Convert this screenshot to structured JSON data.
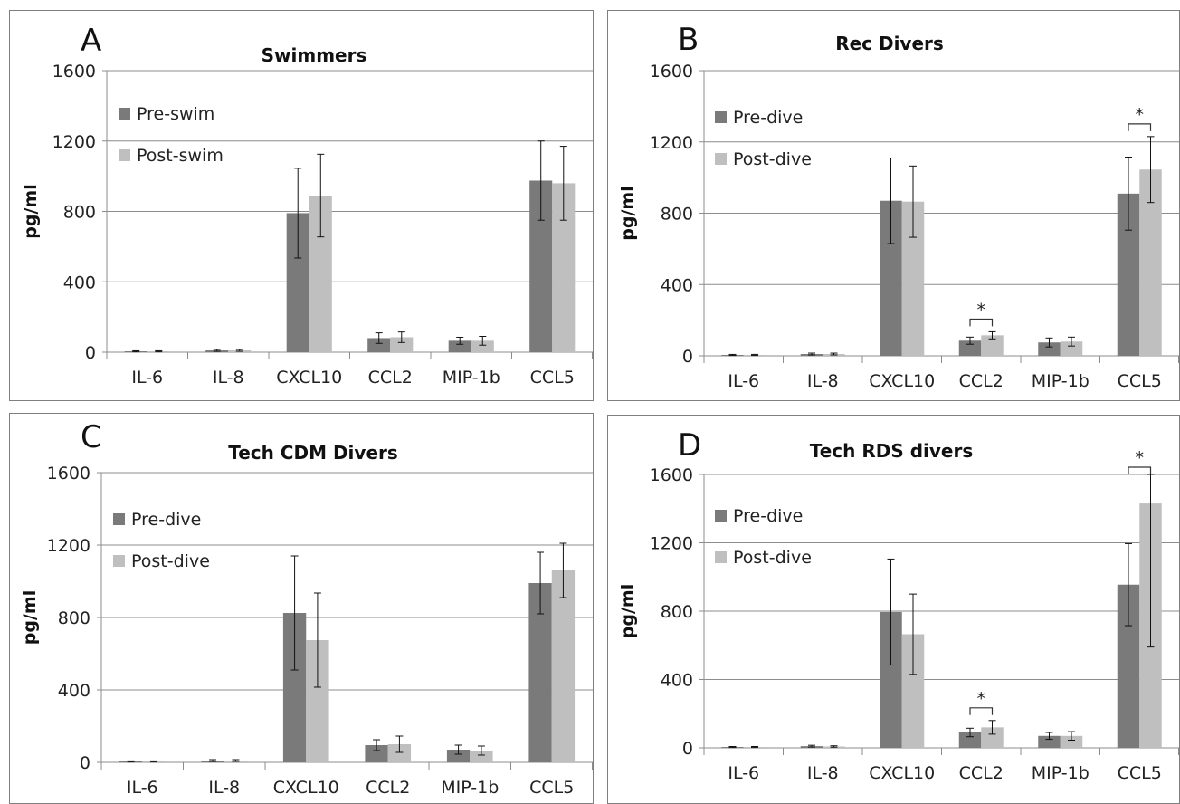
{
  "chart_data": [
    {
      "type": "bar",
      "panel": "A",
      "title": "Swimmers",
      "ylabel": "pg/ml",
      "ylim": [
        0,
        1600
      ],
      "yticks": [
        0,
        400,
        800,
        1200,
        1600
      ],
      "ytick_labels": [
        "0",
        "400",
        "800",
        "1200",
        "1600"
      ],
      "grid": true,
      "legend_position": "left",
      "categories": [
        "IL-6",
        "IL-8",
        "CXCL10",
        "CCL2",
        "MIP-1b",
        "CCL5"
      ],
      "series": [
        {
          "name": "Pre-swim",
          "color": "#7a7a7a",
          "values": [
            5,
            10,
            790,
            80,
            65,
            975
          ],
          "errors": [
            3,
            5,
            255,
            30,
            20,
            225
          ]
        },
        {
          "name": "Post-swim",
          "color": "#bfbfbf",
          "values": [
            5,
            10,
            890,
            85,
            65,
            960
          ],
          "errors": [
            3,
            5,
            235,
            30,
            25,
            210
          ]
        }
      ],
      "significance": []
    },
    {
      "type": "bar",
      "panel": "B",
      "title": "Rec Divers",
      "ylabel": "pg/ml",
      "ylim": [
        0,
        1600
      ],
      "yticks": [
        0,
        400,
        800,
        1200,
        1600
      ],
      "ytick_labels": [
        "0",
        "400",
        "800",
        "1200",
        "1600"
      ],
      "grid": true,
      "legend_position": "left",
      "categories": [
        "IL-6",
        "IL-8",
        "CXCL10",
        "CCL2",
        "MIP-1b",
        "CCL5"
      ],
      "series": [
        {
          "name": "Pre-dive",
          "color": "#7a7a7a",
          "values": [
            5,
            10,
            870,
            85,
            75,
            910
          ],
          "errors": [
            3,
            5,
            240,
            20,
            25,
            205
          ]
        },
        {
          "name": "Post-dive",
          "color": "#bfbfbf",
          "values": [
            5,
            10,
            865,
            115,
            80,
            1045
          ],
          "errors": [
            3,
            5,
            200,
            20,
            25,
            185
          ]
        }
      ],
      "significance": [
        {
          "category": "CCL2",
          "label": "*"
        },
        {
          "category": "CCL5",
          "label": "*"
        }
      ]
    },
    {
      "type": "bar",
      "panel": "C",
      "title": "Tech CDM Divers",
      "ylabel": "pg/ml",
      "ylim": [
        0,
        1600
      ],
      "yticks": [
        0,
        400,
        800,
        1200,
        1600
      ],
      "ytick_labels": [
        "0",
        "400",
        "800",
        "1200",
        "1600"
      ],
      "grid": true,
      "legend_position": "left",
      "categories": [
        "IL-6",
        "IL-8",
        "CXCL10",
        "CCL2",
        "MIP-1b",
        "CCL5"
      ],
      "series": [
        {
          "name": "Pre-dive",
          "color": "#7a7a7a",
          "values": [
            5,
            10,
            825,
            95,
            70,
            990
          ],
          "errors": [
            3,
            5,
            315,
            30,
            25,
            170
          ]
        },
        {
          "name": "Post-dive",
          "color": "#bfbfbf",
          "values": [
            5,
            10,
            675,
            100,
            65,
            1060
          ],
          "errors": [
            3,
            5,
            260,
            45,
            25,
            150
          ]
        }
      ],
      "significance": []
    },
    {
      "type": "bar",
      "panel": "D",
      "title": "Tech RDS divers",
      "ylabel": "pg/ml",
      "ylim": [
        0,
        1600
      ],
      "yticks": [
        0,
        400,
        800,
        1200,
        1600
      ],
      "ytick_labels": [
        "0",
        "400",
        "800",
        "1200",
        "1600"
      ],
      "grid": true,
      "legend_position": "left",
      "categories": [
        "IL-6",
        "IL-8",
        "CXCL10",
        "CCL2",
        "MIP-1b",
        "CCL5"
      ],
      "series": [
        {
          "name": "Pre-dive",
          "color": "#7a7a7a",
          "values": [
            5,
            10,
            795,
            90,
            70,
            955
          ],
          "errors": [
            3,
            5,
            310,
            25,
            20,
            240
          ]
        },
        {
          "name": "Post-dive",
          "color": "#bfbfbf",
          "values": [
            5,
            8,
            665,
            120,
            70,
            1430
          ],
          "errors": [
            3,
            4,
            235,
            40,
            25,
            840
          ]
        }
      ],
      "significance": [
        {
          "category": "CCL2",
          "label": "*"
        },
        {
          "category": "CCL5",
          "label": "*"
        }
      ]
    }
  ]
}
